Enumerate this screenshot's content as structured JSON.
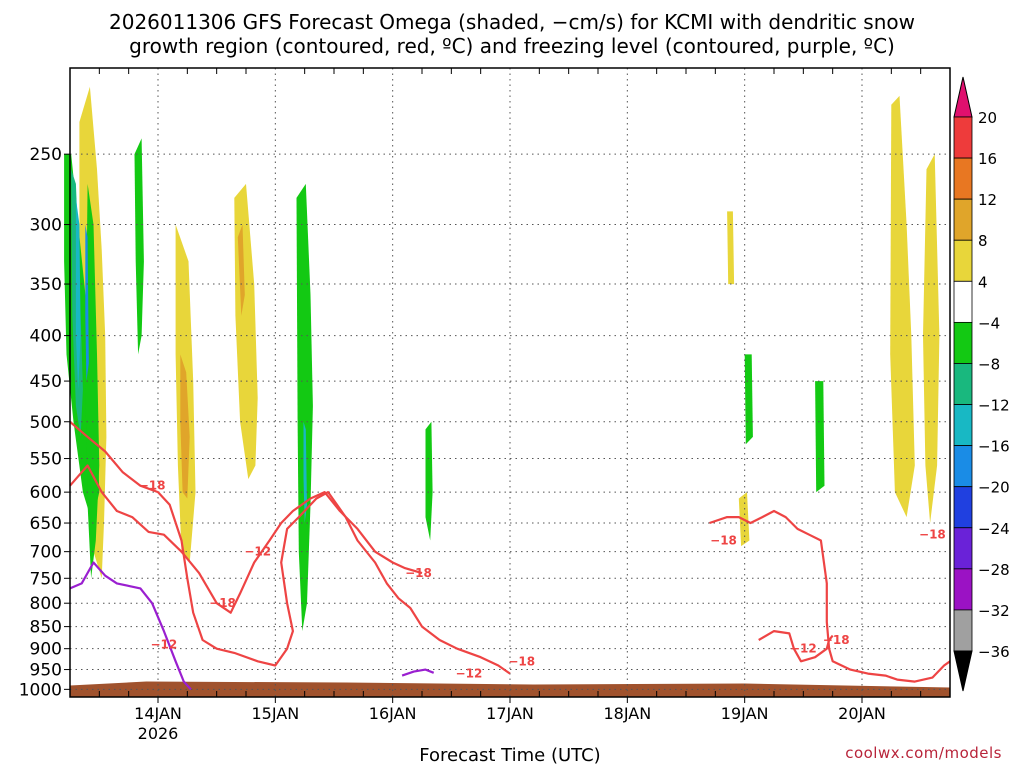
{
  "title": {
    "line1": "2026011306 GFS Forecast Omega (shaded, −cm/s) for KCMI with dendritic snow",
    "line2": "growth region (contoured, red, ºC) and freezing level (contoured, purple, ºC)"
  },
  "credit": "coolwx.com/models",
  "chart_data": {
    "type": "heatmap",
    "xlabel": "Forecast Time (UTC)",
    "ylabel": "",
    "x_ticks": [
      {
        "label": "14JAN",
        "sublabel": "2026",
        "day": 1
      },
      {
        "label": "15JAN",
        "day": 2
      },
      {
        "label": "16JAN",
        "day": 3
      },
      {
        "label": "17JAN",
        "day": 4
      },
      {
        "label": "18JAN",
        "day": 5
      },
      {
        "label": "19JAN",
        "day": 6
      },
      {
        "label": "20JAN",
        "day": 7
      }
    ],
    "x_range_days": [
      0.25,
      7.75
    ],
    "y_axis_pressure_hPa": [
      250,
      300,
      350,
      400,
      450,
      500,
      550,
      600,
      650,
      700,
      750,
      800,
      850,
      900,
      950,
      1000
    ],
    "y_range_hPa": [
      200,
      1020
    ],
    "y_scale": "log-pressure",
    "grid": true,
    "colorbar": {
      "labels": [
        "20",
        "16",
        "12",
        "8",
        "4",
        "−4",
        "−8",
        "−12",
        "−16",
        "−20",
        "−24",
        "−28",
        "−32",
        "−36"
      ],
      "colors": [
        "#ee3b3b",
        "#e87722",
        "#e0a52a",
        "#e8d63a",
        "#ffffff",
        "#13c913",
        "#19b87e",
        "#18b8c4",
        "#1a8ce6",
        "#2040e0",
        "#6a22d8",
        "#9b12c4",
        "#a0a0a0"
      ],
      "top_arrow_color": "#e0106e",
      "bottom_arrow_color": "#000000"
    },
    "shaded_regions": [
      {
        "color": "#e8d63a",
        "polygon": [
          [
            0.33,
            230
          ],
          [
            0.42,
            210
          ],
          [
            0.48,
            260
          ],
          [
            0.52,
            320
          ],
          [
            0.55,
            400
          ],
          [
            0.56,
            520
          ],
          [
            0.54,
            650
          ],
          [
            0.52,
            750
          ],
          [
            0.45,
            700
          ],
          [
            0.4,
            600
          ],
          [
            0.36,
            480
          ],
          [
            0.33,
            380
          ]
        ]
      },
      {
        "color": "#13c913",
        "polygon": [
          [
            0.2,
            250
          ],
          [
            0.26,
            250
          ],
          [
            0.32,
            300
          ],
          [
            0.4,
            380
          ],
          [
            0.48,
            500
          ],
          [
            0.5,
            600
          ],
          [
            0.44,
            650
          ],
          [
            0.36,
            600
          ],
          [
            0.28,
            500
          ],
          [
            0.22,
            420
          ],
          [
            0.2,
            330
          ]
        ]
      },
      {
        "color": "#13c913",
        "polygon": [
          [
            0.4,
            270
          ],
          [
            0.45,
            300
          ],
          [
            0.48,
            420
          ],
          [
            0.5,
            560
          ],
          [
            0.47,
            680
          ],
          [
            0.43,
            750
          ],
          [
            0.4,
            620
          ],
          [
            0.38,
            450
          ]
        ]
      },
      {
        "color": "#19b87e",
        "polygon": [
          [
            0.26,
            260
          ],
          [
            0.3,
            270
          ],
          [
            0.33,
            340
          ],
          [
            0.36,
            460
          ],
          [
            0.34,
            520
          ],
          [
            0.3,
            480
          ],
          [
            0.27,
            380
          ]
        ]
      },
      {
        "color": "#18b8c4",
        "polygon": [
          [
            0.3,
            280
          ],
          [
            0.33,
            300
          ],
          [
            0.34,
            400
          ],
          [
            0.32,
            460
          ],
          [
            0.3,
            400
          ]
        ]
      },
      {
        "color": "#1a8ce6",
        "polygon": [
          [
            0.38,
            300
          ],
          [
            0.4,
            310
          ],
          [
            0.41,
            430
          ],
          [
            0.39,
            450
          ],
          [
            0.38,
            380
          ]
        ]
      },
      {
        "color": "#13c913",
        "polygon": [
          [
            0.8,
            250
          ],
          [
            0.86,
            240
          ],
          [
            0.88,
            330
          ],
          [
            0.86,
            400
          ],
          [
            0.83,
            420
          ],
          [
            0.81,
            330
          ]
        ]
      },
      {
        "color": "#e8d63a",
        "polygon": [
          [
            1.15,
            300
          ],
          [
            1.26,
            330
          ],
          [
            1.3,
            450
          ],
          [
            1.32,
            600
          ],
          [
            1.27,
            720
          ],
          [
            1.2,
            700
          ],
          [
            1.17,
            560
          ],
          [
            1.15,
            420
          ]
        ]
      },
      {
        "color": "#e0a52a",
        "polygon": [
          [
            1.19,
            420
          ],
          [
            1.24,
            440
          ],
          [
            1.27,
            520
          ],
          [
            1.25,
            610
          ],
          [
            1.21,
            600
          ],
          [
            1.19,
            500
          ]
        ]
      },
      {
        "color": "#e8d63a",
        "polygon": [
          [
            1.65,
            280
          ],
          [
            1.75,
            270
          ],
          [
            1.82,
            350
          ],
          [
            1.85,
            470
          ],
          [
            1.83,
            560
          ],
          [
            1.77,
            580
          ],
          [
            1.7,
            500
          ],
          [
            1.66,
            380
          ]
        ]
      },
      {
        "color": "#e0a52a",
        "polygon": [
          [
            1.68,
            310
          ],
          [
            1.72,
            300
          ],
          [
            1.74,
            360
          ],
          [
            1.71,
            380
          ]
        ]
      },
      {
        "color": "#13c913",
        "polygon": [
          [
            2.18,
            280
          ],
          [
            2.26,
            270
          ],
          [
            2.3,
            360
          ],
          [
            2.32,
            480
          ],
          [
            2.3,
            620
          ],
          [
            2.27,
            800
          ],
          [
            2.23,
            860
          ],
          [
            2.2,
            700
          ],
          [
            2.19,
            500
          ]
        ]
      },
      {
        "color": "#18b8c4",
        "polygon": [
          [
            2.24,
            500
          ],
          [
            2.26,
            510
          ],
          [
            2.27,
            620
          ],
          [
            2.25,
            650
          ],
          [
            2.24,
            580
          ]
        ]
      },
      {
        "color": "#13c913",
        "polygon": [
          [
            3.28,
            510
          ],
          [
            3.33,
            500
          ],
          [
            3.34,
            600
          ],
          [
            3.32,
            680
          ],
          [
            3.28,
            640
          ]
        ]
      },
      {
        "color": "#13c913",
        "polygon": [
          [
            6.0,
            420
          ],
          [
            6.06,
            420
          ],
          [
            6.07,
            520
          ],
          [
            6.01,
            530
          ]
        ]
      },
      {
        "color": "#13c913",
        "polygon": [
          [
            6.6,
            450
          ],
          [
            6.67,
            450
          ],
          [
            6.68,
            590
          ],
          [
            6.61,
            600
          ]
        ]
      },
      {
        "color": "#e8d63a",
        "polygon": [
          [
            7.25,
            220
          ],
          [
            7.32,
            215
          ],
          [
            7.38,
            300
          ],
          [
            7.42,
            400
          ],
          [
            7.45,
            560
          ],
          [
            7.38,
            640
          ],
          [
            7.28,
            600
          ],
          [
            7.24,
            420
          ]
        ]
      },
      {
        "color": "#e8d63a",
        "polygon": [
          [
            7.55,
            260
          ],
          [
            7.62,
            250
          ],
          [
            7.66,
            400
          ],
          [
            7.64,
            560
          ],
          [
            7.58,
            650
          ],
          [
            7.54,
            560
          ],
          [
            7.52,
            400
          ]
        ]
      },
      {
        "color": "#e8d63a",
        "polygon": [
          [
            5.85,
            290
          ],
          [
            5.9,
            290
          ],
          [
            5.91,
            350
          ],
          [
            5.86,
            350
          ]
        ]
      },
      {
        "color": "#e8d63a",
        "polygon": [
          [
            5.95,
            610
          ],
          [
            6.02,
            600
          ],
          [
            6.04,
            680
          ],
          [
            5.97,
            690
          ]
        ]
      }
    ],
    "contours": [
      {
        "name": "-18",
        "color": "#ee4444",
        "points": [
          [
            0.25,
            590
          ],
          [
            0.4,
            560
          ],
          [
            0.52,
            600
          ],
          [
            0.65,
            630
          ],
          [
            0.78,
            640
          ],
          [
            0.92,
            665
          ],
          [
            1.05,
            670
          ],
          [
            1.2,
            700
          ],
          [
            1.35,
            740
          ],
          [
            1.5,
            800
          ],
          [
            1.62,
            820
          ],
          [
            1.7,
            780
          ],
          [
            1.82,
            720
          ],
          [
            1.95,
            680
          ],
          [
            2.05,
            650
          ],
          [
            2.15,
            630
          ],
          [
            2.3,
            610
          ],
          [
            2.42,
            600
          ],
          [
            2.55,
            630
          ],
          [
            2.7,
            660
          ],
          [
            2.85,
            700
          ],
          [
            3.0,
            720
          ],
          [
            3.1,
            730
          ],
          [
            3.25,
            740
          ]
        ]
      },
      {
        "name": "-12",
        "color": "#ee4444",
        "points": [
          [
            0.25,
            500
          ],
          [
            0.4,
            520
          ],
          [
            0.55,
            540
          ],
          [
            0.7,
            570
          ],
          [
            0.85,
            590
          ],
          [
            1.0,
            600
          ],
          [
            1.1,
            620
          ],
          [
            1.2,
            680
          ],
          [
            1.25,
            750
          ],
          [
            1.3,
            820
          ],
          [
            1.38,
            880
          ],
          [
            1.5,
            900
          ],
          [
            1.65,
            910
          ],
          [
            1.85,
            930
          ],
          [
            2.0,
            940
          ],
          [
            2.1,
            900
          ],
          [
            2.15,
            860
          ],
          [
            2.1,
            800
          ],
          [
            2.05,
            720
          ],
          [
            2.1,
            660
          ],
          [
            2.2,
            640
          ],
          [
            2.35,
            610
          ],
          [
            2.45,
            600
          ],
          [
            2.6,
            640
          ],
          [
            2.7,
            680
          ],
          [
            2.85,
            720
          ],
          [
            2.95,
            760
          ],
          [
            3.05,
            790
          ],
          [
            3.15,
            810
          ],
          [
            3.25,
            850
          ],
          [
            3.4,
            880
          ],
          [
            3.55,
            900
          ],
          [
            3.75,
            920
          ],
          [
            3.9,
            940
          ],
          [
            4.0,
            960
          ]
        ]
      },
      {
        "name": "-18",
        "color": "#ee4444",
        "points": [
          [
            5.7,
            650
          ],
          [
            5.85,
            640
          ],
          [
            5.95,
            640
          ],
          [
            6.05,
            650
          ],
          [
            6.15,
            640
          ],
          [
            6.25,
            630
          ],
          [
            6.35,
            640
          ],
          [
            6.45,
            660
          ],
          [
            6.55,
            670
          ],
          [
            6.65,
            680
          ],
          [
            6.7,
            760
          ],
          [
            6.7,
            840
          ],
          [
            6.72,
            900
          ],
          [
            6.75,
            930
          ],
          [
            6.9,
            950
          ],
          [
            7.05,
            960
          ],
          [
            7.2,
            965
          ],
          [
            7.3,
            975
          ],
          [
            7.45,
            980
          ],
          [
            7.6,
            970
          ],
          [
            7.7,
            940
          ],
          [
            7.75,
            930
          ]
        ]
      },
      {
        "name": "-12",
        "color": "#ee4444",
        "points": [
          [
            6.12,
            880
          ],
          [
            6.25,
            860
          ],
          [
            6.38,
            865
          ],
          [
            6.42,
            900
          ],
          [
            6.48,
            930
          ],
          [
            6.6,
            920
          ],
          [
            6.7,
            900
          ],
          [
            6.72,
            880
          ],
          [
            6.75,
            870
          ]
        ]
      },
      {
        "name": "freezing",
        "color": "#9a1fd0",
        "points": [
          [
            0.25,
            770
          ],
          [
            0.35,
            760
          ],
          [
            0.45,
            720
          ],
          [
            0.55,
            745
          ],
          [
            0.65,
            760
          ],
          [
            0.75,
            765
          ],
          [
            0.85,
            770
          ],
          [
            0.95,
            800
          ],
          [
            1.05,
            860
          ],
          [
            1.15,
            930
          ],
          [
            1.22,
            980
          ],
          [
            1.28,
            1000
          ]
        ]
      },
      {
        "name": "freezing",
        "color": "#9a1fd0",
        "points": [
          [
            3.08,
            965
          ],
          [
            3.18,
            955
          ],
          [
            3.28,
            950
          ],
          [
            3.35,
            958
          ]
        ]
      }
    ],
    "contour_labels": [
      {
        "text": "−18",
        "day": 0.95,
        "p": 590
      },
      {
        "text": "−12",
        "day": 1.85,
        "p": 700
      },
      {
        "text": "−18",
        "day": 1.55,
        "p": 800
      },
      {
        "text": "−12",
        "day": 1.05,
        "p": 890
      },
      {
        "text": "−18",
        "day": 3.22,
        "p": 740
      },
      {
        "text": "−12",
        "day": 3.65,
        "p": 960
      },
      {
        "text": "−18",
        "day": 4.1,
        "p": 930
      },
      {
        "text": "−18",
        "day": 5.82,
        "p": 680
      },
      {
        "text": "−12",
        "day": 6.5,
        "p": 900
      },
      {
        "text": "−18",
        "day": 6.78,
        "p": 880
      },
      {
        "text": "−18",
        "day": 7.6,
        "p": 670
      }
    ],
    "terrain_color": "#a0522d"
  }
}
